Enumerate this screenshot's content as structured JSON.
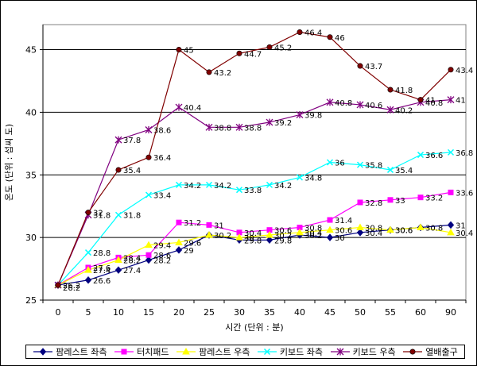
{
  "chart_data": {
    "type": "line",
    "title": "",
    "xlabel": "시간 (단위 : 분)",
    "ylabel": "온도 (단위 : 섭씨 도)",
    "x": [
      0,
      5,
      10,
      15,
      20,
      25,
      30,
      35,
      40,
      45,
      50,
      55,
      60,
      90
    ],
    "x_tick_labels": [
      "0",
      "5",
      "10",
      "15",
      "20",
      "25",
      "30",
      "35",
      "40",
      "45",
      "50",
      "55",
      "60",
      "90"
    ],
    "ylim": [
      25,
      47
    ],
    "y_ticks": [
      25,
      30,
      35,
      40,
      45
    ],
    "grid": "horizontal",
    "legend_position": "bottom",
    "series": [
      {
        "name": "팜레스트 좌측",
        "color": "#000080",
        "marker": "diamond",
        "values": [
          26.2,
          26.6,
          27.4,
          28.2,
          29,
          30.2,
          29.8,
          29.8,
          30.2,
          30,
          30.4,
          30.6,
          30.8,
          31
        ],
        "labels": [
          "26.2",
          "26.6",
          "27.4",
          "28.2",
          "29",
          "30.2",
          "29.8",
          "29.8",
          "30.2",
          "30",
          "30.4",
          "30.6",
          "30.8",
          "31"
        ]
      },
      {
        "name": "터치패드",
        "color": "#FF00FF",
        "marker": "square",
        "values": [
          26.2,
          27.6,
          28.4,
          28.6,
          31.2,
          31,
          30.4,
          30.6,
          30.8,
          31.4,
          32.8,
          33,
          33.2,
          33.6
        ],
        "labels": [
          "",
          "27.6",
          "28.4",
          "28.6",
          "31.2",
          "31",
          "30.4",
          "30.6",
          "30.8",
          "31.4",
          "32.8",
          "33",
          "33.2",
          "33.6"
        ]
      },
      {
        "name": "팜레스트 우측",
        "color": "#FFFF00",
        "marker": "triangle",
        "values": [
          26.2,
          27.4,
          28.2,
          29.4,
          29.6,
          30.2,
          30,
          30.2,
          30.4,
          30.6,
          30.8,
          30.6,
          30.8,
          30.4
        ],
        "labels": [
          "",
          "27.4",
          "28.2",
          "29.4",
          "29.6",
          "",
          "30",
          "30.2",
          "30.4",
          "30.6",
          "30.8",
          "30.6",
          "",
          "30.4"
        ]
      },
      {
        "name": "키보드 좌측",
        "color": "#00FFFF",
        "marker": "x",
        "values": [
          26.2,
          28.8,
          31.8,
          33.4,
          34.2,
          34.2,
          33.8,
          34.2,
          34.8,
          36,
          35.8,
          35.4,
          36.6,
          36.8
        ],
        "labels": [
          "",
          "28.8",
          "31.8",
          "33.4",
          "34.2",
          "34.2",
          "33.8",
          "34.2",
          "34.8",
          "36",
          "35.8",
          "35.4",
          "36.6",
          "36.8"
        ]
      },
      {
        "name": "키보드 우측",
        "color": "#800080",
        "marker": "star",
        "values": [
          26.2,
          31.8,
          37.8,
          38.6,
          40.4,
          38.8,
          38.8,
          39.2,
          39.8,
          40.8,
          40.6,
          40.2,
          40.8,
          41
        ],
        "labels": [
          "",
          "31.8",
          "37.8",
          "38.6",
          "40.4",
          "38.8",
          "38.8",
          "39.2",
          "39.8",
          "40.8",
          "40.6",
          "40.2",
          "40.8",
          "41"
        ]
      },
      {
        "name": "열배출구",
        "color": "#800000",
        "marker": "circle",
        "values": [
          26.2,
          32,
          35.4,
          36.4,
          45,
          43.2,
          44.7,
          45.2,
          46.4,
          46,
          43.7,
          41.8,
          41,
          43.4
        ],
        "labels": [
          "",
          "32",
          "35.4",
          "36.4",
          "45",
          "43.2",
          "44.7",
          "45.2",
          "46.4",
          "46",
          "43.7",
          "41.8",
          "41",
          "43.4"
        ]
      }
    ]
  }
}
